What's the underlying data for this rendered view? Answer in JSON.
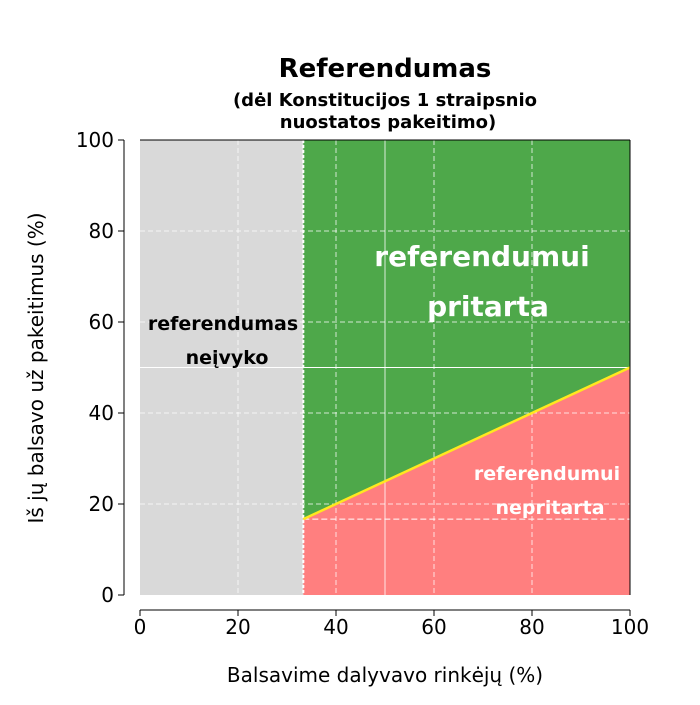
{
  "chart_data": {
    "type": "area",
    "title": "Referendumas",
    "subtitle_lines": [
      "(dėl Konstitucijos 1 straipsnio",
      "nuostatos pakeitimo)"
    ],
    "xlabel": "Balsavime dalyvavo rinkėjų (%)",
    "ylabel": "Iš jų balsavo už pakeitimus (%)",
    "xlim": [
      0,
      100
    ],
    "ylim": [
      0,
      100
    ],
    "xticks": [
      0,
      20,
      40,
      60,
      80,
      100
    ],
    "yticks": [
      0,
      20,
      40,
      60,
      80,
      100
    ],
    "grid": true,
    "turnout_threshold": 33.33,
    "threshold_line": {
      "x": [
        33.33,
        100
      ],
      "y": [
        16.67,
        50
      ]
    },
    "horizontal_reference": [
      16.67,
      50
    ],
    "regions": [
      {
        "key": "invalid",
        "lines": [
          "referendumas",
          "neįvyko"
        ],
        "color": "#d9d9d9",
        "text_color": "#000000"
      },
      {
        "key": "approved",
        "lines": [
          "referendumui",
          "pritarta"
        ],
        "color": "#4ea84a",
        "text_color": "#ffffff"
      },
      {
        "key": "rejected",
        "lines": [
          "referendumui",
          "nepritarta"
        ],
        "color": "#ff7f7f",
        "text_color": "#ffffff"
      }
    ],
    "threshold_color": "#ffe81f"
  }
}
